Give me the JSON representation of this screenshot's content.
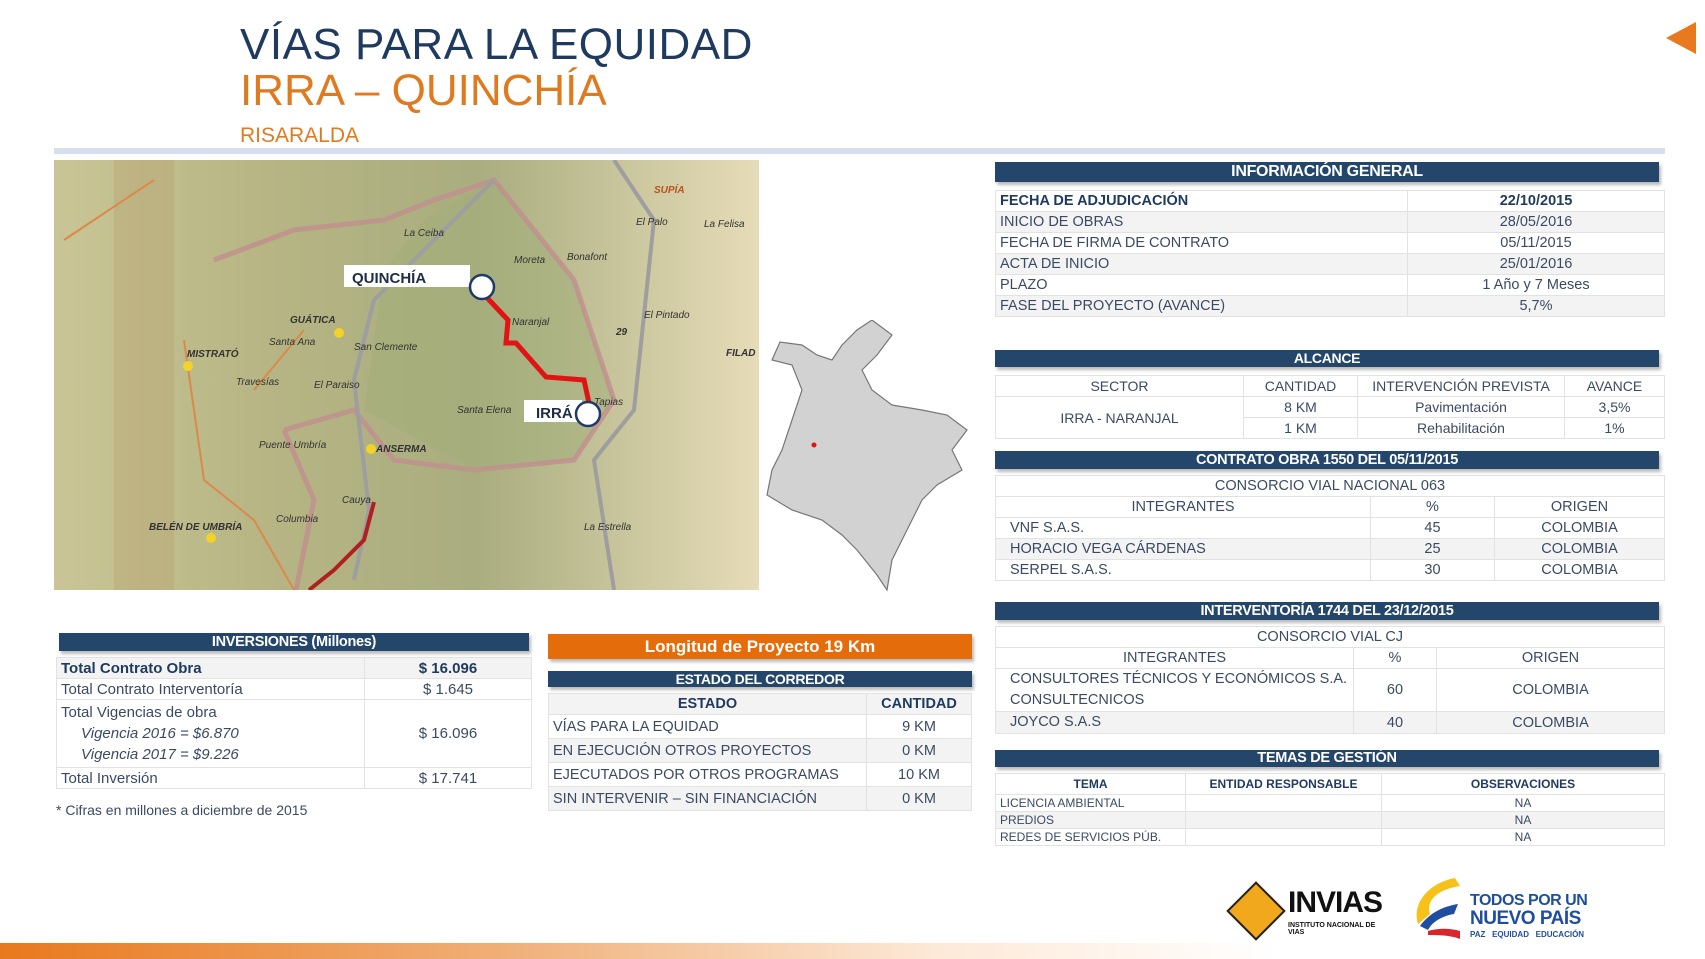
{
  "header": {
    "title": "VÍAS PARA LA EQUIDAD",
    "subtitle": "IRRA – QUINCHÍA",
    "region": "RISARALDA"
  },
  "colors": {
    "navy": "#24466b",
    "orange": "#e46c0a",
    "title": "#1f3a5f"
  },
  "map": {
    "labels": [
      "QUINCHÍA",
      "IRRÁ",
      "MISTRATÓ",
      "GUÁTICA",
      "ANSERMA",
      "BELÉN DE UMBRÍA",
      "SUPÍA",
      "Naranjal",
      "Moreta",
      "Bonafont",
      "La Ceiba",
      "Santa Ana",
      "San Clemente",
      "Travesías",
      "El Paraiso",
      "Puente Umbría",
      "Santa Elena",
      "Tapias",
      "Cauya",
      "Columbia",
      "La Estrella",
      "El Pintado",
      "El Palo",
      "La Felisa",
      "FILAD",
      "29"
    ]
  },
  "info_general": {
    "title": "INFORMACIÓN GENERAL",
    "rows": [
      [
        "FECHA DE ADJUDICACIÓN",
        "22/10/2015"
      ],
      [
        "INICIO DE OBRAS",
        "28/05/2016"
      ],
      [
        "FECHA DE FIRMA DE CONTRATO",
        "05/11/2015"
      ],
      [
        "ACTA DE INICIO",
        "25/01/2016"
      ],
      [
        "PLAZO",
        "1 Año y 7 Meses"
      ],
      [
        "FASE DEL PROYECTO (AVANCE)",
        "5,7%"
      ]
    ]
  },
  "alcance": {
    "title": "ALCANCE",
    "headers": [
      "SECTOR",
      "CANTIDAD",
      "INTERVENCIÓN  PREVISTA",
      "AVANCE"
    ],
    "sector": "IRRA - NARANJAL",
    "rows": [
      [
        "8 KM",
        "Pavimentación",
        "3,5%"
      ],
      [
        "1 KM",
        "Rehabilitación",
        "1%"
      ]
    ]
  },
  "contrato": {
    "title": "CONTRATO OBRA 1550 DEL 05/11/2015",
    "consorcio": "CONSORCIO  VIAL NACIONAL 063",
    "headers": [
      "INTEGRANTES",
      "%",
      "ORIGEN"
    ],
    "rows": [
      [
        "VNF S.A.S.",
        "45",
        "COLOMBIA"
      ],
      [
        "HORACIO  VEGA CÁRDENAS",
        "25",
        "COLOMBIA"
      ],
      [
        "SERPEL  S.A.S.",
        "30",
        "COLOMBIA"
      ]
    ]
  },
  "interventoria": {
    "title": "INTERVENTORÍA 1744 DEL 23/12/2015",
    "consorcio": "CONSORCIO  VIAL CJ",
    "headers": [
      "INTEGRANTES",
      "%",
      "ORIGEN"
    ],
    "rows": [
      [
        "CONSULTORES  TÉCNICOS  Y ECONÓMICOS  S.A. CONSULTECNICOS",
        "60",
        "COLOMBIA"
      ],
      [
        "JOYCO S.A.S",
        "40",
        "COLOMBIA"
      ]
    ]
  },
  "temas": {
    "title": "TEMAS DE GESTIÓN",
    "headers": [
      "TEMA",
      "ENTIDAD RESPONSABLE",
      "OBSERVACIONES"
    ],
    "rows": [
      [
        "LICENCIA AMBIENTAL",
        "",
        "NA"
      ],
      [
        "PREDIOS",
        "",
        "NA"
      ],
      [
        "REDES DE SERVICIOS PÚB.",
        "",
        "NA"
      ]
    ]
  },
  "inversiones": {
    "title": "INVERSIONES (Millones)",
    "r1": [
      "Total Contrato Obra",
      "$ 16.096"
    ],
    "r2": [
      "Total Contrato Interventoría",
      "$  1.645"
    ],
    "r3": {
      "label": "Total Vigencias de obra",
      "v1": "Vigencia 2016 = $6.870",
      "v2": "Vigencia 2017 = $9.226",
      "value": "$ 16.096"
    },
    "r4": [
      "Total Inversión",
      "$ 17.741"
    ],
    "note": "* Cifras en  millones a diciembre de 2015"
  },
  "longitud": "Longitud  de Proyecto  19 Km",
  "estado": {
    "title": "ESTADO DEL CORREDOR",
    "headers": [
      "ESTADO",
      "CANTIDAD"
    ],
    "rows": [
      [
        "VÍAS PARA LA EQUIDAD",
        "9 KM"
      ],
      [
        "EN EJECUCIÓN  OTROS  PROYECTOS",
        "0 KM"
      ],
      [
        "EJECUTADOS  POR OTROS PROGRAMAS",
        "10 KM"
      ],
      [
        "SIN INTERVENIR  – SIN FINANCIACIÓN",
        "0 KM"
      ]
    ]
  },
  "logos": {
    "invias": "INVIAS",
    "invias_sub": "INSTITUTO NACIONAL DE VIAS",
    "gov1": "TODOS POR UN",
    "gov2": "NUEVO PAÍS",
    "gov3": "PAZ   EQUIDAD   EDUCACIÓN"
  }
}
